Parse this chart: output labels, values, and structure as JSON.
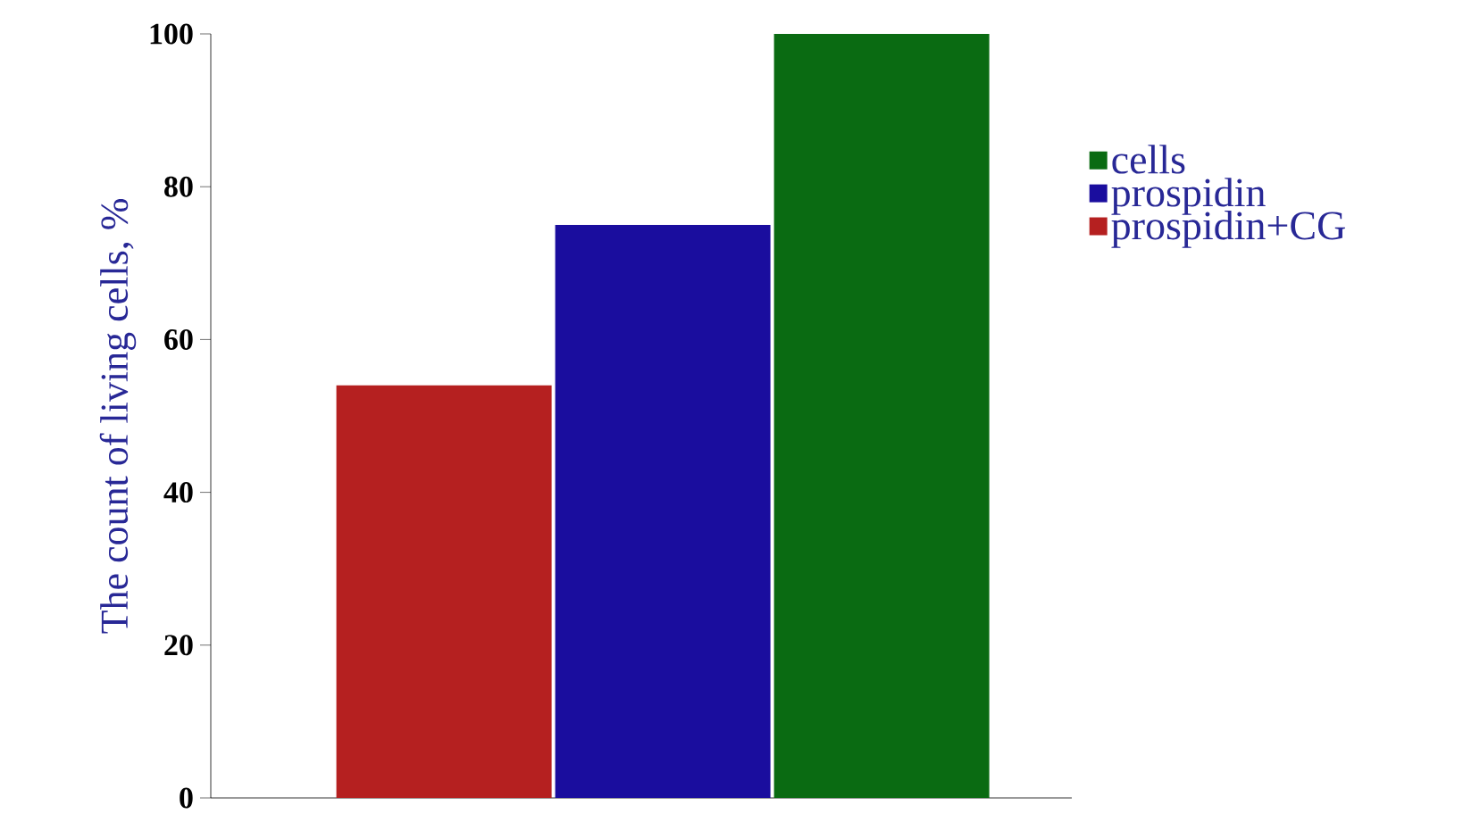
{
  "chart_data": {
    "type": "bar",
    "ylabel": "The count of living cells, %",
    "categories": [
      null
    ],
    "series": [
      {
        "name": "prospidin+CG",
        "color": "#b52020",
        "values": [
          54
        ]
      },
      {
        "name": "prospidin",
        "color": "#1a0d9e",
        "values": [
          75
        ]
      },
      {
        "name": "cells",
        "color": "#0a6b12",
        "values": [
          100
        ]
      }
    ],
    "ylim": [
      0,
      100
    ],
    "yticks": [
      0,
      20,
      40,
      60,
      80,
      100
    ],
    "grid": false,
    "legend": "right"
  }
}
